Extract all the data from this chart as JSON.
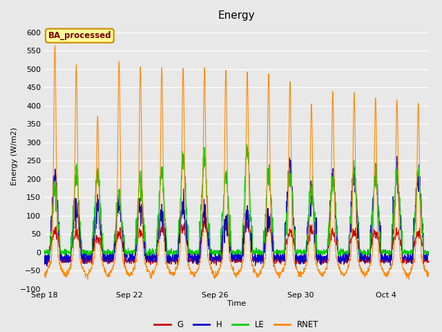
{
  "title": "Energy",
  "xlabel": "Time",
  "ylabel": "Energy (W/m2)",
  "ylim": [
    -100,
    625
  ],
  "yticks": [
    -100,
    -50,
    0,
    50,
    100,
    150,
    200,
    250,
    300,
    350,
    400,
    450,
    500,
    550,
    600
  ],
  "plot_bg_color": "#e8e8e8",
  "legend_label": "BA_processed",
  "legend_box_facecolor": "#ffff99",
  "legend_box_edgecolor": "#cc8800",
  "series_colors": {
    "G": "#cc0000",
    "H": "#0000cc",
    "LE": "#00cc00",
    "RNET": "#ff8800"
  },
  "line_width": 0.8,
  "n_days": 18,
  "pts_per_day": 96,
  "xtick_labels": [
    "Sep 18",
    "Sep 22",
    "Sep 26",
    "Sep 30",
    "Oct 4"
  ],
  "xtick_positions": [
    0,
    4,
    8,
    12,
    16
  ]
}
